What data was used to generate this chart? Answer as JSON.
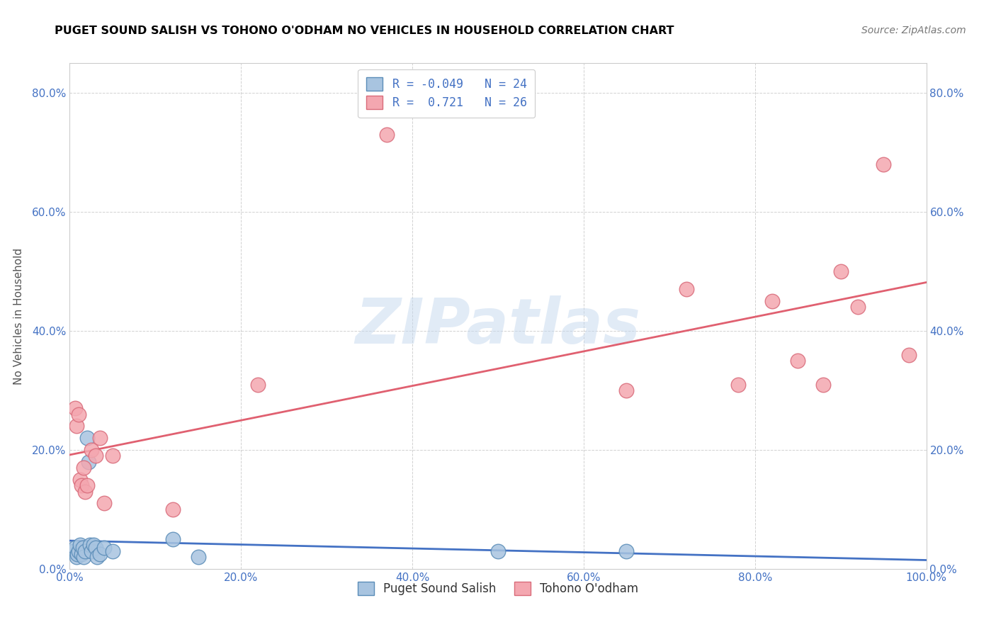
{
  "title": "PUGET SOUND SALISH VS TOHONO O'ODHAM NO VEHICLES IN HOUSEHOLD CORRELATION CHART",
  "source": "Source: ZipAtlas.com",
  "ylabel": "No Vehicles in Household",
  "xlim": [
    0.0,
    1.0
  ],
  "ylim": [
    0.0,
    0.85
  ],
  "xticks": [
    0.0,
    0.2,
    0.4,
    0.6,
    0.8,
    1.0
  ],
  "yticks": [
    0.0,
    0.2,
    0.4,
    0.6,
    0.8
  ],
  "xtick_labels": [
    "0.0%",
    "20.0%",
    "40.0%",
    "60.0%",
    "80.0%",
    "100.0%"
  ],
  "ytick_labels": [
    "0.0%",
    "20.0%",
    "40.0%",
    "60.0%",
    "80.0%"
  ],
  "blue_color": "#A8C4E0",
  "pink_color": "#F4A7B0",
  "blue_edge_color": "#5B8DB8",
  "pink_edge_color": "#D96B7A",
  "blue_line_color": "#4472C4",
  "pink_line_color": "#E06070",
  "legend_label1": "Puget Sound Salish",
  "legend_label2": "Tohono O'odham",
  "R1": -0.049,
  "N1": 24,
  "R2": 0.721,
  "N2": 26,
  "blue_x": [
    0.004,
    0.006,
    0.008,
    0.009,
    0.01,
    0.012,
    0.014,
    0.015,
    0.016,
    0.018,
    0.02,
    0.022,
    0.024,
    0.025,
    0.028,
    0.03,
    0.032,
    0.035,
    0.04,
    0.05,
    0.12,
    0.15,
    0.5,
    0.65
  ],
  "blue_y": [
    0.03,
    0.035,
    0.02,
    0.025,
    0.03,
    0.04,
    0.025,
    0.035,
    0.02,
    0.03,
    0.22,
    0.18,
    0.04,
    0.03,
    0.04,
    0.035,
    0.02,
    0.025,
    0.035,
    0.03,
    0.05,
    0.02,
    0.03,
    0.03
  ],
  "pink_x": [
    0.006,
    0.008,
    0.01,
    0.012,
    0.014,
    0.016,
    0.018,
    0.02,
    0.025,
    0.03,
    0.035,
    0.04,
    0.05,
    0.12,
    0.22,
    0.37,
    0.65,
    0.72,
    0.78,
    0.82,
    0.85,
    0.88,
    0.9,
    0.92,
    0.95,
    0.98
  ],
  "pink_y": [
    0.27,
    0.24,
    0.26,
    0.15,
    0.14,
    0.17,
    0.13,
    0.14,
    0.2,
    0.19,
    0.22,
    0.11,
    0.19,
    0.1,
    0.31,
    0.73,
    0.3,
    0.47,
    0.31,
    0.45,
    0.35,
    0.31,
    0.5,
    0.44,
    0.68,
    0.36
  ],
  "watermark_text": "ZIPatlas",
  "watermark_color": "#C5D8EE",
  "watermark_alpha": 0.5
}
